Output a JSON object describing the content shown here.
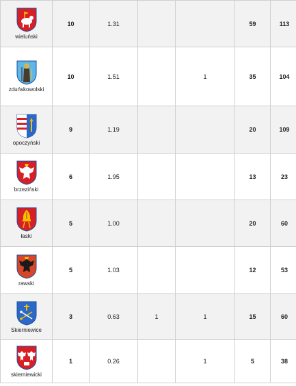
{
  "rows": [
    {
      "name": "wieluński",
      "a": "10",
      "b": "1.31",
      "c": "",
      "d": "",
      "e": "59",
      "f": "113",
      "crest": "lamb-crest-icon"
    },
    {
      "name": "zduńskowolski",
      "a": "10",
      "b": "1.51",
      "c": "",
      "d": "1",
      "e": "35",
      "f": "104",
      "crest": "saint-crest-icon"
    },
    {
      "name": "opoczyński",
      "a": "9",
      "b": "1.19",
      "c": "",
      "d": "",
      "e": "20",
      "f": "109",
      "crest": "split-crest-icon"
    },
    {
      "name": "brzeziński",
      "a": "6",
      "b": "1.95",
      "c": "",
      "d": "",
      "e": "13",
      "f": "23",
      "crest": "eagle-crest-icon"
    },
    {
      "name": "łaski",
      "a": "5",
      "b": "1.00",
      "c": "",
      "d": "",
      "e": "20",
      "f": "60",
      "crest": "mitre-crest-icon"
    },
    {
      "name": "rawski",
      "a": "5",
      "b": "1.03",
      "c": "",
      "d": "",
      "e": "12",
      "f": "53",
      "crest": "black-eagle-crest-icon"
    },
    {
      "name": "Skierniewice",
      "a": "3",
      "b": "0.63",
      "c": "1",
      "d": "1",
      "e": "15",
      "f": "60",
      "crest": "keys-crest-icon"
    },
    {
      "name": "skierniewicki",
      "a": "1",
      "b": "0.26",
      "c": "",
      "d": "1",
      "e": "5",
      "f": "38",
      "crest": "two-eagles-crest-icon"
    }
  ]
}
